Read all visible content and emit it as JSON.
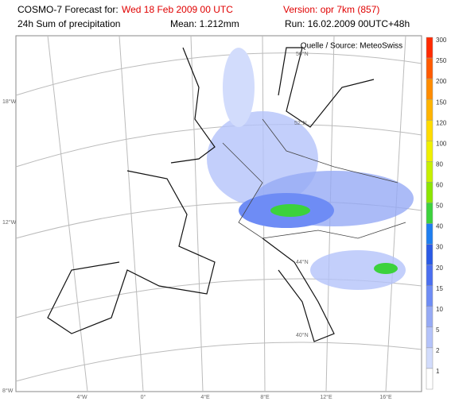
{
  "header": {
    "model": "COSMO-7 Forecast for:",
    "date": "Wed 18 Feb 2009 00 UTC",
    "version": "Version: opr 7km (857)",
    "product": "24h Sum of precipitation",
    "mean": "Mean: 1.212mm",
    "run": "Run: 16.02.2009 00UTC+48h"
  },
  "map": {
    "source": "Quelle / Source: MeteoSwiss",
    "left_labels": [
      "18°W",
      "12°W",
      "8°W"
    ],
    "bottom_labels": [
      "4°W",
      "0°",
      "4°E",
      "8°E",
      "12°E",
      "16°E"
    ],
    "lat_labels": [
      "56°N",
      "52°N",
      "44°N",
      "40°N"
    ]
  },
  "legend": {
    "levels": [
      300,
      250,
      200,
      150,
      120,
      100,
      80,
      60,
      50,
      40,
      30,
      20,
      15,
      10,
      5,
      2,
      1
    ],
    "colors": [
      "#ff2a00",
      "#ff5a00",
      "#ff8c00",
      "#ffb400",
      "#ffdc00",
      "#f0f000",
      "#c8f000",
      "#8ce600",
      "#3cd23c",
      "#1e7ef0",
      "#2a5ae6",
      "#4a6ef0",
      "#6e8cf5",
      "#96aaf5",
      "#b4c3fa",
      "#d2dcfc",
      "#ffffff"
    ]
  }
}
